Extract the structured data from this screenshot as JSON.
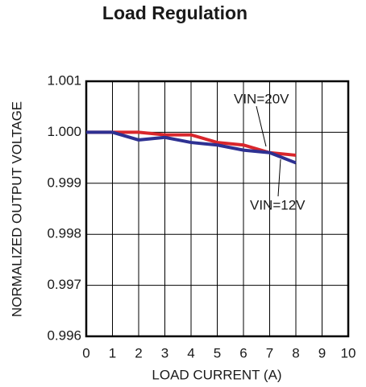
{
  "chart_data": {
    "type": "line",
    "title": "Load Regulation",
    "xlabel": "LOAD CURRENT (A)",
    "ylabel": "NORMALIZED OUTPUT VOLTAGE",
    "x": [
      0,
      1,
      2,
      3,
      4,
      5,
      6,
      7,
      8
    ],
    "series": [
      {
        "name": "VIN=20V",
        "color": "#d9262c",
        "values": [
          1.0,
          1.0,
          1.0,
          0.99995,
          0.99995,
          0.9998,
          0.99975,
          0.9996,
          0.99955
        ]
      },
      {
        "name": "VIN=12V",
        "color": "#2e3192",
        "values": [
          1.0,
          1.0,
          0.99985,
          0.9999,
          0.9998,
          0.99975,
          0.99965,
          0.9996,
          0.9994
        ]
      }
    ],
    "xlim": [
      0,
      10
    ],
    "xticks": [
      0,
      1,
      2,
      3,
      4,
      5,
      6,
      7,
      8,
      9,
      10
    ],
    "ylim": [
      0.996,
      1.001
    ],
    "yticks": [
      0.996,
      0.997,
      0.998,
      0.999,
      {
        "value": 1,
        "label": "1.000"
      },
      1.001
    ],
    "grid": true
  }
}
